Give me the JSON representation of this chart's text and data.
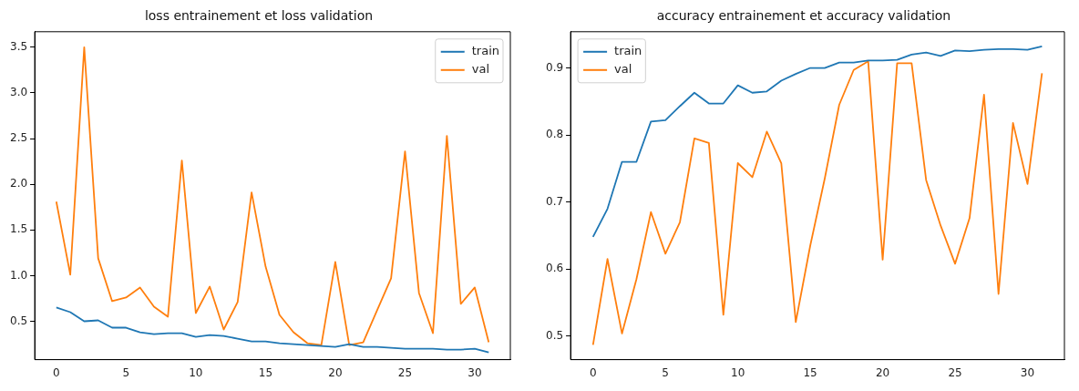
{
  "chart_data": [
    {
      "type": "line",
      "title": "loss entrainement et loss validation",
      "x": [
        0,
        1,
        2,
        3,
        4,
        5,
        6,
        7,
        8,
        9,
        10,
        11,
        12,
        13,
        14,
        15,
        16,
        17,
        18,
        19,
        20,
        21,
        22,
        23,
        24,
        25,
        26,
        27,
        28,
        29,
        30,
        31
      ],
      "series": [
        {
          "name": "train",
          "color": "#1f77b4",
          "values": [
            0.65,
            0.6,
            0.5,
            0.51,
            0.43,
            0.43,
            0.38,
            0.36,
            0.37,
            0.37,
            0.33,
            0.35,
            0.34,
            0.31,
            0.28,
            0.28,
            0.26,
            0.25,
            0.24,
            0.23,
            0.22,
            0.25,
            0.22,
            0.22,
            0.21,
            0.2,
            0.2,
            0.2,
            0.19,
            0.19,
            0.2,
            0.16
          ]
        },
        {
          "name": "val",
          "color": "#ff7f0e",
          "values": [
            1.81,
            1.01,
            3.5,
            1.19,
            0.72,
            0.76,
            0.87,
            0.66,
            0.55,
            2.26,
            0.59,
            0.88,
            0.41,
            0.71,
            1.91,
            1.1,
            0.57,
            0.38,
            0.26,
            0.24,
            1.15,
            0.24,
            0.27,
            0.62,
            0.97,
            2.36,
            0.81,
            0.37,
            2.53,
            0.69,
            0.87,
            0.27
          ]
        }
      ],
      "xlim": [
        -1.55,
        32.55
      ],
      "xticks": [
        0,
        5,
        10,
        15,
        20,
        25,
        30
      ],
      "ylim": [
        0.08,
        3.67
      ],
      "yticks": [
        0.5,
        {
          "value": 1,
          "label": "1.0"
        },
        1.5,
        {
          "value": 2,
          "label": "2.0"
        },
        2.5,
        {
          "value": 3,
          "label": "3.0"
        },
        3.5
      ],
      "grid": false,
      "legend": "top right",
      "marker": "none",
      "line_style": "solid"
    },
    {
      "type": "line",
      "title": "accuracy entrainement et accuracy validation",
      "x": [
        0,
        1,
        2,
        3,
        4,
        5,
        6,
        7,
        8,
        9,
        10,
        11,
        12,
        13,
        14,
        15,
        16,
        17,
        18,
        19,
        20,
        21,
        22,
        23,
        24,
        25,
        26,
        27,
        28,
        29,
        30,
        31
      ],
      "series": [
        {
          "name": "train",
          "color": "#1f77b4",
          "values": [
            0.648,
            0.69,
            0.76,
            0.76,
            0.82,
            0.822,
            0.843,
            0.863,
            0.847,
            0.847,
            0.874,
            0.863,
            0.865,
            0.881,
            0.891,
            0.9,
            0.9,
            0.908,
            0.908,
            0.911,
            0.911,
            0.912,
            0.92,
            0.923,
            0.918,
            0.926,
            0.925,
            0.927,
            0.928,
            0.928,
            0.927,
            0.932
          ]
        },
        {
          "name": "val",
          "color": "#ff7f0e",
          "values": [
            0.487,
            0.615,
            0.504,
            0.585,
            0.685,
            0.623,
            0.67,
            0.795,
            0.788,
            0.532,
            0.758,
            0.737,
            0.805,
            0.758,
            0.521,
            0.635,
            0.735,
            0.845,
            0.897,
            0.91,
            0.614,
            0.907,
            0.907,
            0.733,
            0.665,
            0.608,
            0.676,
            0.86,
            0.563,
            0.818,
            0.727,
            0.892
          ]
        }
      ],
      "xlim": [
        -1.55,
        32.55
      ],
      "xticks": [
        0,
        5,
        10,
        15,
        20,
        25,
        30
      ],
      "ylim": [
        0.465,
        0.954
      ],
      "yticks": [
        0.5,
        0.6,
        0.7,
        0.8,
        0.9
      ],
      "grid": false,
      "legend": "top left",
      "marker": "none",
      "line_style": "solid"
    }
  ]
}
